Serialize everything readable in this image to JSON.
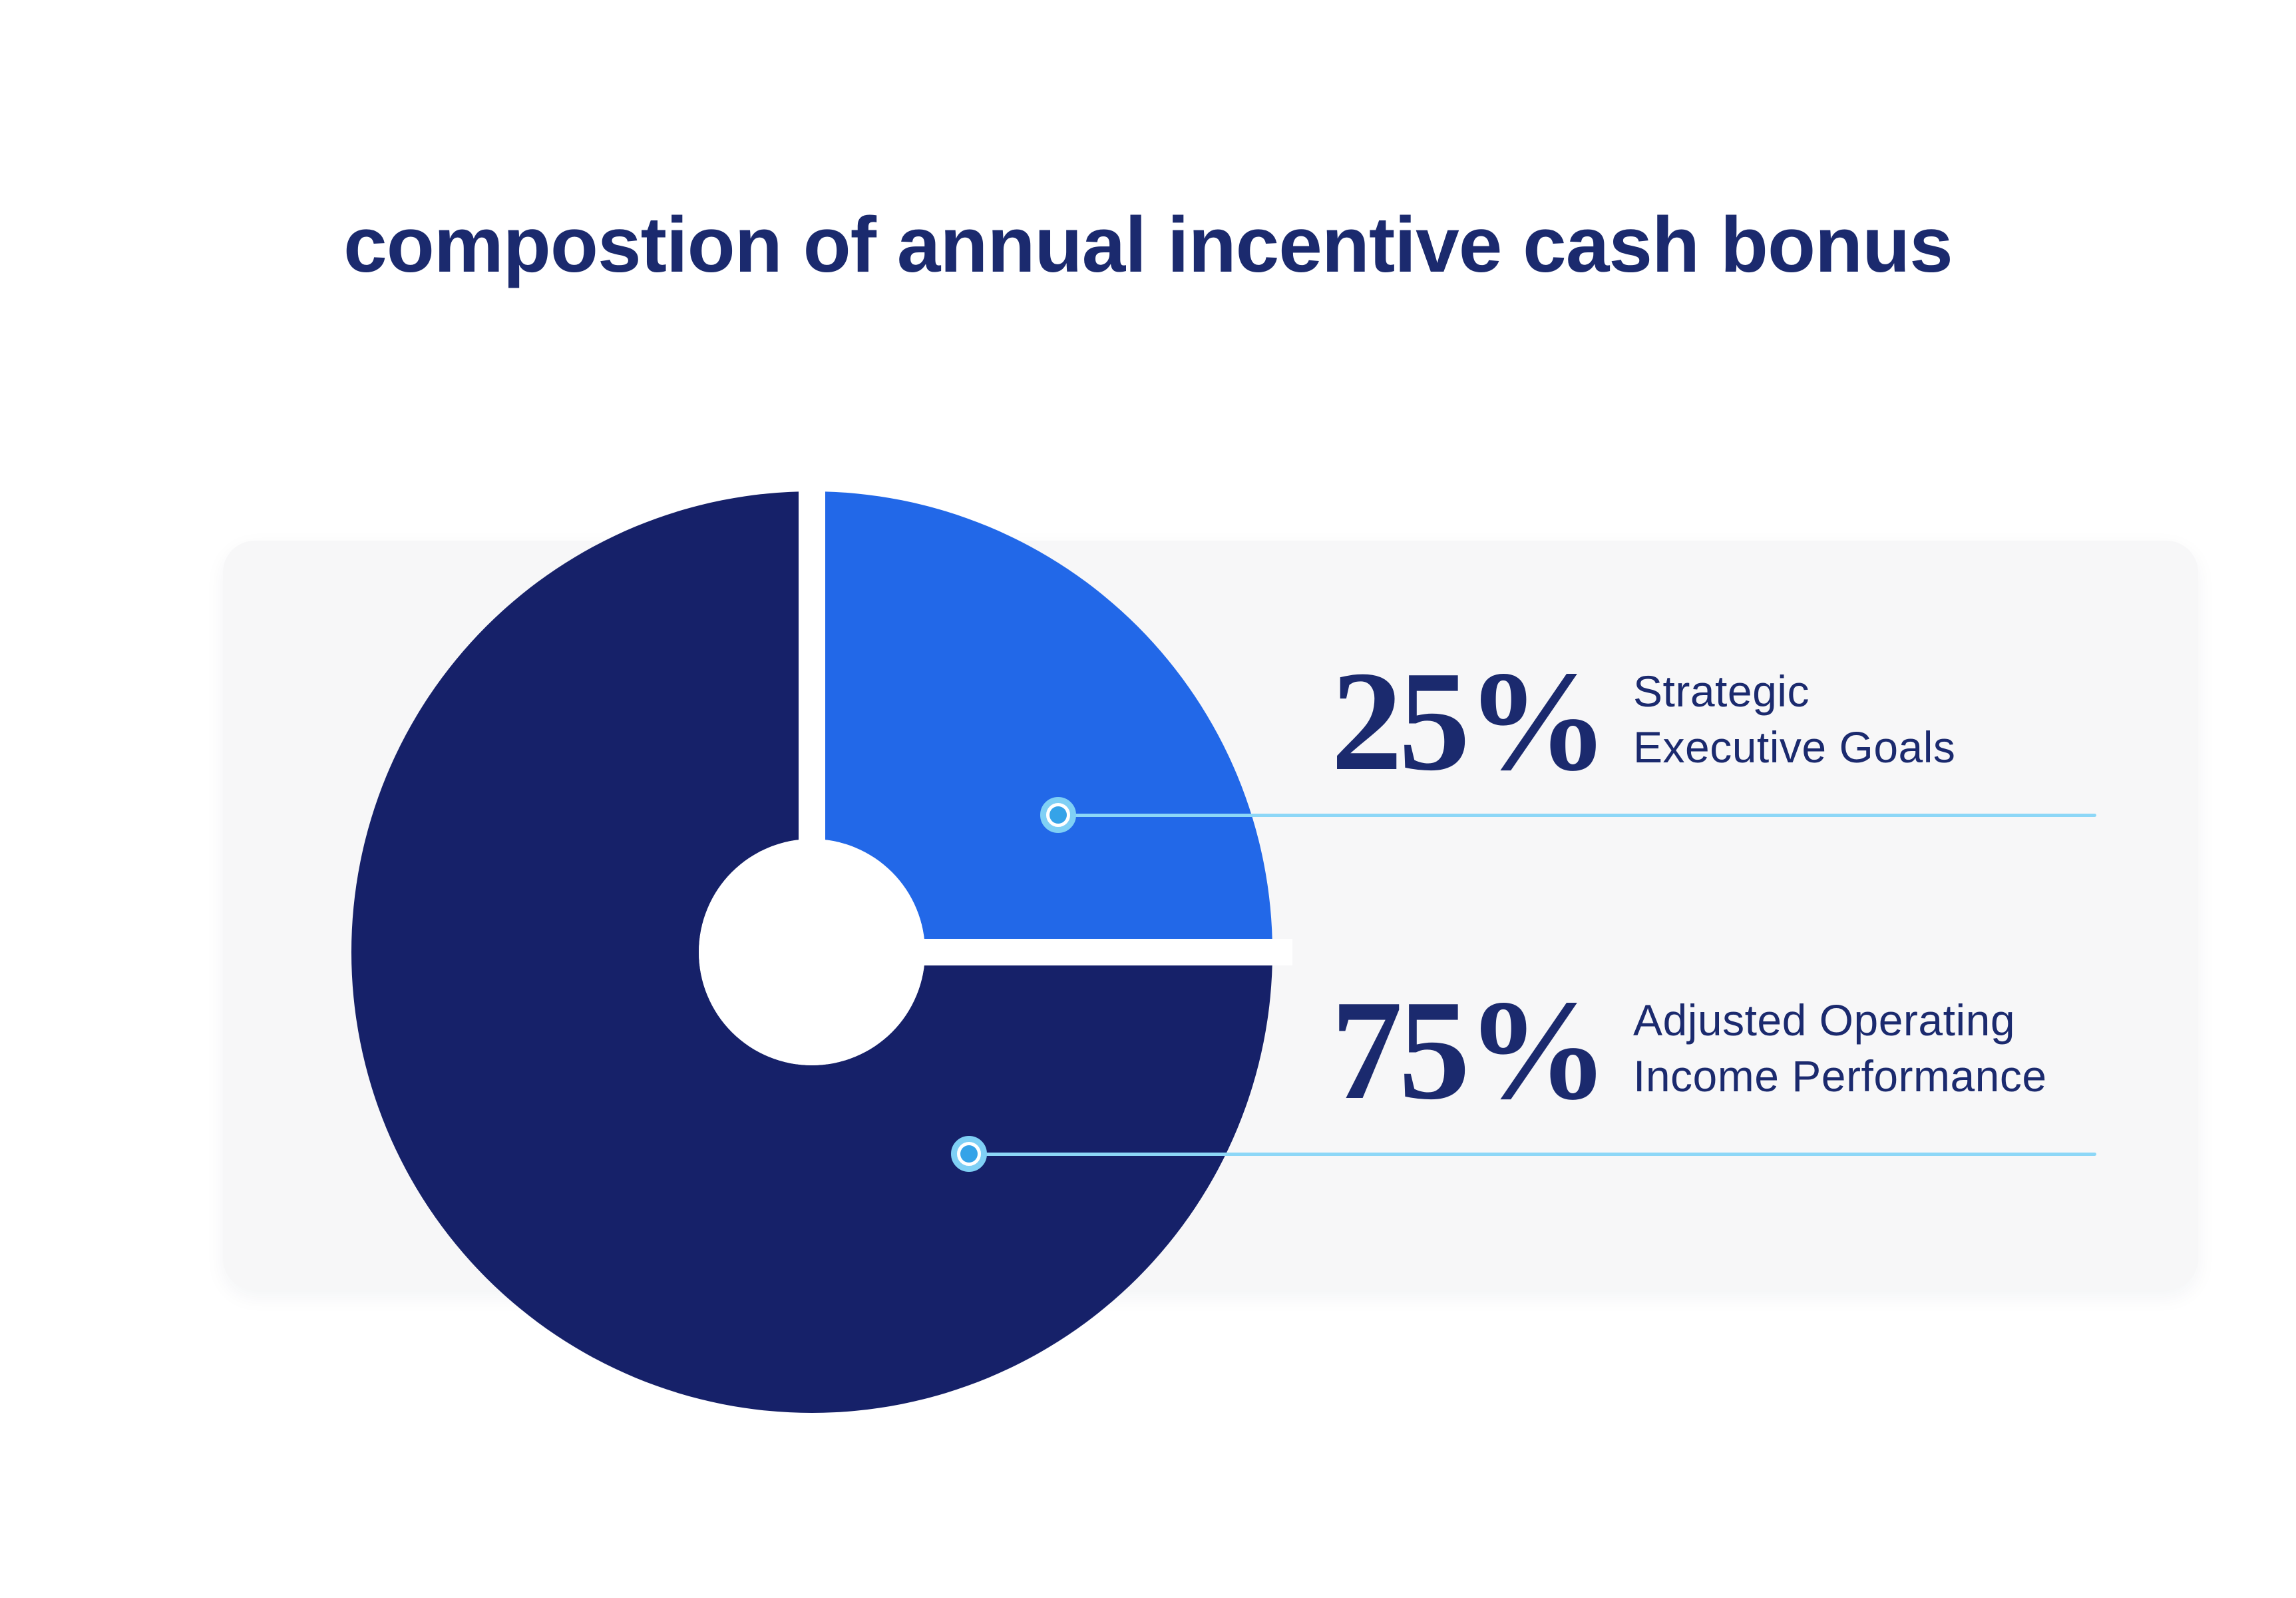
{
  "page": {
    "title": "compostion of annual incentive cash bonus"
  },
  "colors": {
    "navy": "#1b2a6e",
    "slice_navy": "#162169",
    "slice_blue": "#2268e8",
    "callout_line": "#8dd7f7",
    "marker_ring": "#7fd0f5",
    "marker_dot": "#35a3e8",
    "card_bg": "#f7f7f8"
  },
  "chart_data": {
    "type": "pie",
    "donut": true,
    "title": "compostion of annual incentive cash bonus",
    "categories": [
      "Strategic Executive Goals",
      "Adjusted Operating Income Performance"
    ],
    "values": [
      25,
      75
    ],
    "start_angle_deg": -90,
    "legend_position": "right-callouts",
    "slices": [
      {
        "value": 25,
        "value_label": "25%",
        "label_lines": [
          "Strategic",
          "Executive Goals"
        ],
        "color": "#2268e8"
      },
      {
        "value": 75,
        "value_label": "75%",
        "label_lines": [
          "Adjusted Operating",
          "Income Performance"
        ],
        "color": "#162169"
      }
    ]
  }
}
